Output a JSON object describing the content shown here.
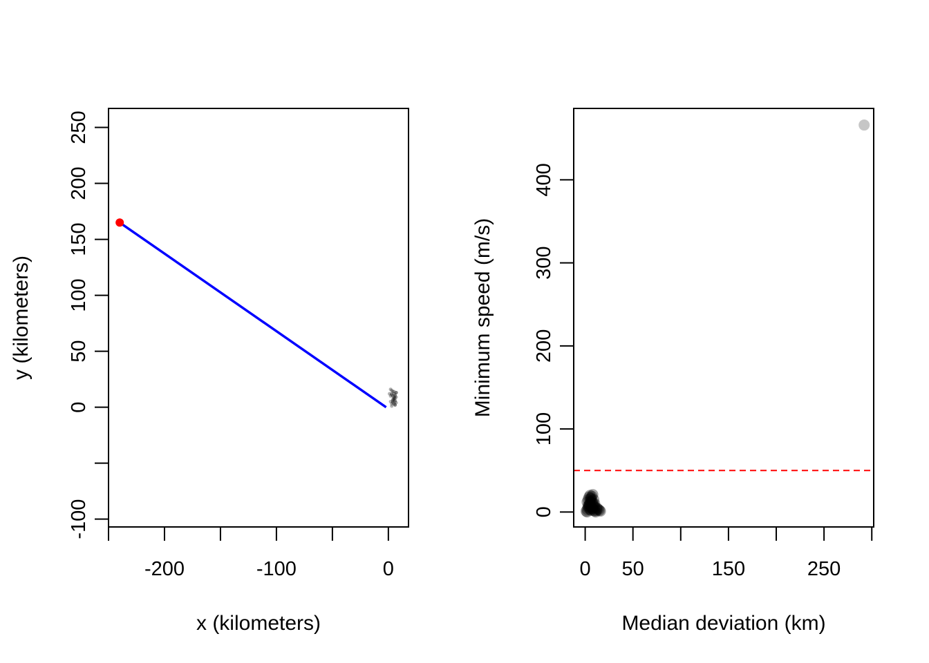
{
  "chart_data": [
    {
      "type": "line",
      "xlabel": "x (kilometers)",
      "ylabel": "y (kilometers)",
      "xlim": [
        -250,
        18
      ],
      "ylim": [
        -107,
        267
      ],
      "x_ticks": [
        -250,
        -200,
        -150,
        -100,
        -50,
        0
      ],
      "x_tick_labels": [
        "",
        "-200",
        "",
        "-100",
        "",
        "0"
      ],
      "y_ticks": [
        -100,
        -50,
        0,
        50,
        100,
        150,
        200,
        250
      ],
      "y_tick_labels": [
        "-100",
        "",
        "0",
        "50",
        "100",
        "150",
        "200",
        "250"
      ],
      "series": [
        {
          "style": "line",
          "color": "#0000ff",
          "x": [
            -240,
            -2
          ],
          "y": [
            165,
            0
          ]
        },
        {
          "style": "point",
          "color": "#ff0000",
          "x": [
            -240
          ],
          "y": [
            165
          ]
        },
        {
          "style": "scatter",
          "color": "#000000",
          "x": [
            2,
            3,
            4,
            5,
            6,
            7,
            3,
            4,
            5,
            6,
            2,
            5,
            6,
            7,
            3,
            4,
            6,
            5,
            4,
            3,
            6,
            7,
            5,
            2,
            1,
            4,
            6,
            5,
            3,
            7,
            6,
            4
          ],
          "y": [
            10,
            12,
            14,
            8,
            6,
            4,
            3,
            7,
            12,
            2,
            5,
            9,
            11,
            13,
            15,
            6,
            8,
            3,
            10,
            1,
            5,
            9,
            14,
            16,
            12,
            4,
            2,
            7,
            11,
            13,
            10,
            5
          ]
        }
      ]
    },
    {
      "type": "scatter",
      "xlabel": "Median deviation (km)",
      "ylabel": "Minimum speed (m/s)",
      "xlim": [
        -12,
        302
      ],
      "ylim": [
        -18,
        486
      ],
      "x_ticks": [
        0,
        50,
        100,
        150,
        200,
        250,
        300
      ],
      "x_tick_labels": [
        "0",
        "50",
        "",
        "150",
        "",
        "250",
        ""
      ],
      "y_ticks": [
        0,
        100,
        200,
        300,
        400
      ],
      "y_tick_labels": [
        "0",
        "100",
        "200",
        "300",
        "400"
      ],
      "threshold": {
        "y": 50,
        "color": "#ff0000"
      },
      "series": [
        {
          "style": "scatter",
          "color": "#000000",
          "x": [
            1,
            2,
            3,
            4,
            5,
            6,
            7,
            8,
            9,
            10,
            11,
            12,
            14,
            16,
            2,
            3,
            4,
            5,
            6,
            7,
            8,
            9,
            10,
            12,
            3,
            4,
            5,
            6,
            7,
            8,
            9,
            5,
            6,
            7,
            8,
            4,
            10,
            13,
            15,
            2
          ],
          "y": [
            1,
            3,
            5,
            8,
            10,
            12,
            6,
            4,
            2,
            1,
            0,
            2,
            3,
            1,
            12,
            15,
            18,
            20,
            17,
            14,
            11,
            9,
            6,
            5,
            7,
            9,
            13,
            16,
            19,
            21,
            15,
            3,
            2,
            4,
            8,
            6,
            10,
            4,
            2,
            0
          ]
        },
        {
          "style": "point",
          "color": "#a0a0a0",
          "x": [
            292
          ],
          "y": [
            466
          ]
        }
      ]
    }
  ]
}
